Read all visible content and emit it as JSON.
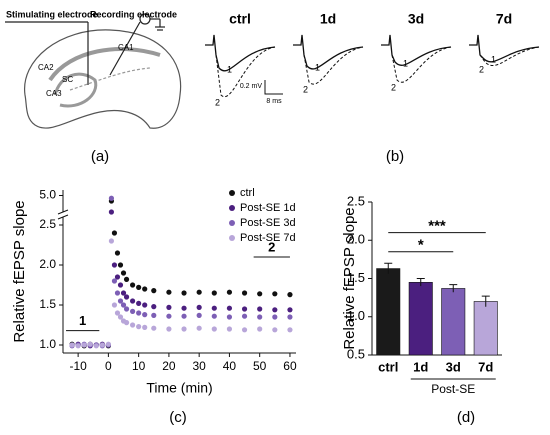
{
  "panel_labels": [
    "(a)",
    "(b)",
    "(c)",
    "(d)"
  ],
  "diagram": {
    "labels": [
      "Stimulating electrode",
      "Recording electrode",
      "CA1",
      "CA2",
      "CA3",
      "SC"
    ]
  },
  "traces": {
    "conditions": [
      "ctrl",
      "1d",
      "3d",
      "7d"
    ],
    "scale_y": "0.2 mV",
    "scale_x": "8 ms",
    "markers": [
      "1",
      "2"
    ]
  },
  "chart_data": [
    {
      "type": "scatter",
      "ylabel": "Relative fEPSP slope",
      "xlabel": "Time (min)",
      "x": [
        -12,
        -10,
        -8,
        -6,
        -4,
        -2,
        0,
        1,
        2,
        3,
        4,
        5,
        6,
        8,
        10,
        12,
        15,
        20,
        25,
        30,
        35,
        40,
        45,
        50,
        55,
        60
      ],
      "xlim": [
        -15,
        62
      ],
      "xticks": [
        -10,
        0,
        10,
        20,
        30,
        40,
        50,
        60
      ],
      "ylim": [
        0.9,
        5.2
      ],
      "ybreak": [
        2.6,
        4.4
      ],
      "yticks": [
        {
          "value": 1.0,
          "label": "1.0"
        },
        1.5,
        {
          "value": 2.0,
          "label": "2.0"
        },
        2.5,
        {
          "value": 5.0,
          "label": "5.0"
        }
      ],
      "legend": "upper right",
      "annotations": [
        "1",
        "2"
      ],
      "series": [
        {
          "name": "ctrl",
          "color": "#111111",
          "values": [
            1.01,
            1.0,
            0.99,
            1.01,
            1.0,
            1.0,
            0.99,
            4.8,
            2.4,
            2.15,
            2.0,
            1.9,
            1.82,
            1.75,
            1.72,
            1.7,
            1.68,
            1.66,
            1.65,
            1.66,
            1.65,
            1.66,
            1.65,
            1.64,
            1.64,
            1.63
          ]
        },
        {
          "name": "Post-SE 1d",
          "color": "#4b1f7f",
          "values": [
            1.0,
            1.01,
            1.0,
            0.99,
            1.0,
            1.01,
            1.0,
            4.4,
            2.0,
            1.85,
            1.75,
            1.65,
            1.6,
            1.55,
            1.52,
            1.5,
            1.48,
            1.47,
            1.46,
            1.47,
            1.46,
            1.46,
            1.45,
            1.45,
            1.44,
            1.44
          ]
        },
        {
          "name": "Post-SE 3d",
          "color": "#7d5fb5",
          "values": [
            0.99,
            1.0,
            1.01,
            1.0,
            1.0,
            0.99,
            1.0,
            4.9,
            1.8,
            1.65,
            1.55,
            1.5,
            1.45,
            1.42,
            1.4,
            1.38,
            1.37,
            1.36,
            1.36,
            1.37,
            1.36,
            1.35,
            1.36,
            1.35,
            1.35,
            1.35
          ]
        },
        {
          "name": "Post-SE 7d",
          "color": "#b8a6d9",
          "values": [
            1.0,
            0.99,
            1.0,
            1.01,
            0.99,
            1.0,
            1.01,
            2.3,
            1.5,
            1.4,
            1.35,
            1.3,
            1.28,
            1.25,
            1.23,
            1.22,
            1.21,
            1.2,
            1.2,
            1.21,
            1.2,
            1.2,
            1.19,
            1.2,
            1.19,
            1.19
          ]
        }
      ]
    },
    {
      "type": "bar",
      "ylabel": "Relative fEPSP slope",
      "categories": [
        "ctrl",
        "1d",
        "3d",
        "7d"
      ],
      "group_label": "Post-SE",
      "values": [
        1.63,
        1.45,
        1.37,
        1.2
      ],
      "errors": [
        0.07,
        0.05,
        0.05,
        0.07
      ],
      "colors": [
        "#1a1a1a",
        "#4b1f7f",
        "#7d5fb5",
        "#b8a6d9"
      ],
      "ylim": [
        0.5,
        2.5
      ],
      "yticks": [
        0.5,
        {
          "value": 1.0,
          "label": "1.0"
        },
        1.5,
        {
          "value": 2.0,
          "label": "2.0"
        },
        2.5
      ],
      "significance": [
        "*",
        "***"
      ]
    }
  ]
}
